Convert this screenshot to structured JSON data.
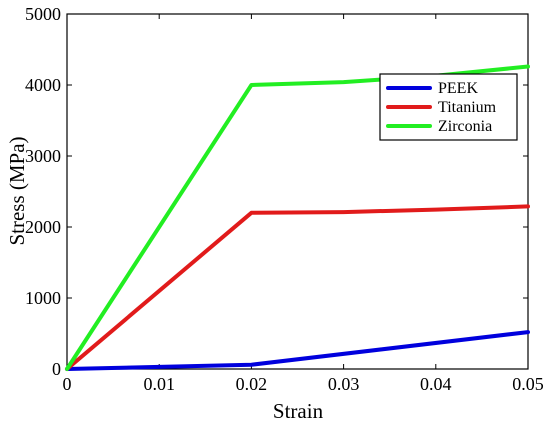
{
  "chart_data": {
    "type": "line",
    "title": "",
    "xlabel": "Strain",
    "ylabel": "Stress (MPa)",
    "xlim": [
      0,
      0.05
    ],
    "ylim": [
      0,
      5000
    ],
    "x_ticks": [
      0,
      0.01,
      0.02,
      0.03,
      0.04,
      0.05
    ],
    "x_tick_labels": [
      "0",
      "0.01",
      "0.02",
      "0.03",
      "0.04",
      "0.05"
    ],
    "y_ticks": [
      0,
      1000,
      2000,
      3000,
      4000,
      5000
    ],
    "y_tick_labels": [
      "0",
      "1000",
      "2000",
      "3000",
      "4000",
      "5000"
    ],
    "grid": false,
    "legend_position": "top-right",
    "series": [
      {
        "name": "PEEK",
        "color": "#0000dd",
        "x": [
          0,
          0.02,
          0.05
        ],
        "y": [
          0,
          60,
          520
        ]
      },
      {
        "name": "Titanium",
        "color": "#e11b1b",
        "x": [
          0,
          0.02,
          0.03,
          0.04,
          0.05
        ],
        "y": [
          0,
          2200,
          2210,
          2245,
          2290
        ]
      },
      {
        "name": "Zirconia",
        "color": "#22ee22",
        "x": [
          0,
          0.02,
          0.03,
          0.04,
          0.05
        ],
        "y": [
          0,
          4000,
          4040,
          4130,
          4260
        ]
      }
    ]
  }
}
